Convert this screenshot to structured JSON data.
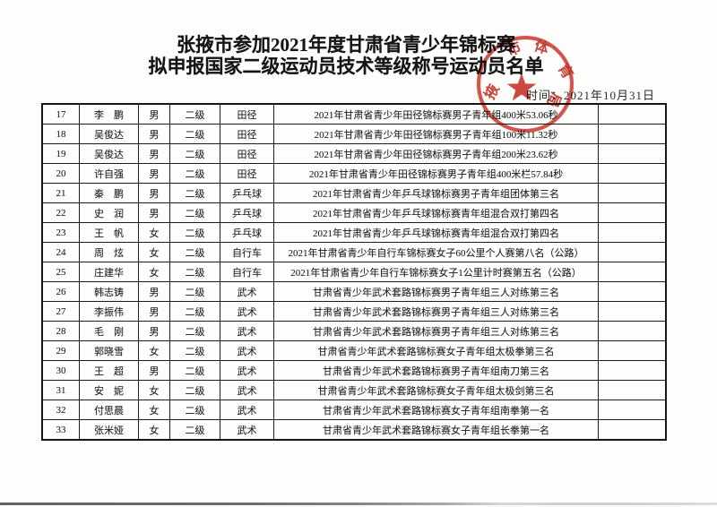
{
  "document": {
    "title_line1": "张掖市参加2021年度甘肃省青少年锦标赛",
    "title_line2": "拟申报国家二级运动员技术等级称号运动员名单",
    "date_label": "时间：2021年10月31日"
  },
  "stamp": {
    "label": "市体育局公章",
    "chars": [
      "掖",
      "市",
      "体",
      "育",
      "局"
    ],
    "color": "#c5271b"
  },
  "table": {
    "rows": [
      {
        "no": "17",
        "name": "李　鹏",
        "gender": "男",
        "level": "二级",
        "sport": "田径",
        "result": "2021年甘肃省青少年田径锦标赛男子青年组400米53.06秒",
        "note": ""
      },
      {
        "no": "18",
        "name": "吴俊达",
        "gender": "男",
        "level": "二级",
        "sport": "田径",
        "result": "2021年甘肃省青少年田径锦标赛男子青年组100米11.32秒",
        "note": ""
      },
      {
        "no": "19",
        "name": "吴俊达",
        "gender": "男",
        "level": "二级",
        "sport": "田径",
        "result": "2021年甘肃省青少年田径锦标赛男子青年组200米23.62秒",
        "note": ""
      },
      {
        "no": "20",
        "name": "许自强",
        "gender": "男",
        "level": "二级",
        "sport": "田径",
        "result": "2021年甘肃省青少年田径锦标赛男子青年组400米栏57.84秒",
        "note": ""
      },
      {
        "no": "21",
        "name": "秦　鹏",
        "gender": "男",
        "level": "二级",
        "sport": "乒乓球",
        "result": "2021年甘肃省青少年乒乓球锦标赛男子青年组团体第三名",
        "note": ""
      },
      {
        "no": "22",
        "name": "史　润",
        "gender": "男",
        "level": "二级",
        "sport": "乒乓球",
        "result": "2021年甘肃省青少年乒乓球锦标赛青年组混合双打第四名",
        "note": ""
      },
      {
        "no": "23",
        "name": "王　帆",
        "gender": "女",
        "level": "二级",
        "sport": "乒乓球",
        "result": "2021年甘肃省青少年乒乓球锦标赛青年组混合双打第四名",
        "note": ""
      },
      {
        "no": "24",
        "name": "周　炫",
        "gender": "女",
        "level": "二级",
        "sport": "自行车",
        "result": "2021年甘肃省青少年自行车锦标赛女子60公里个人赛第八名（公路）",
        "note": ""
      },
      {
        "no": "25",
        "name": "庄建华",
        "gender": "女",
        "level": "二级",
        "sport": "自行车",
        "result": "2021年甘肃省青少年自行车锦标赛女子1公里计时赛第五名（公路）",
        "note": ""
      },
      {
        "no": "26",
        "name": "韩志铸",
        "gender": "男",
        "level": "二级",
        "sport": "武术",
        "result": "甘肃省青少年武术套路锦标赛男子青年组三人对练第三名",
        "note": ""
      },
      {
        "no": "27",
        "name": "李振伟",
        "gender": "男",
        "level": "二级",
        "sport": "武术",
        "result": "甘肃省青少年武术套路锦标赛男子青年组三人对练第三名",
        "note": ""
      },
      {
        "no": "28",
        "name": "毛　刚",
        "gender": "男",
        "level": "二级",
        "sport": "武术",
        "result": "甘肃省青少年武术套路锦标赛男子青年组三人对练第三名",
        "note": ""
      },
      {
        "no": "29",
        "name": "郭晓雪",
        "gender": "女",
        "level": "二级",
        "sport": "武术",
        "result": "甘肃省青少年武术套路锦标赛女子青年组太极拳第三名",
        "note": ""
      },
      {
        "no": "30",
        "name": "王　超",
        "gender": "男",
        "level": "二级",
        "sport": "武术",
        "result": "甘肃省青少年武术套路锦标赛男子青年组南刀第三名",
        "note": ""
      },
      {
        "no": "31",
        "name": "安　妮",
        "gender": "女",
        "level": "二级",
        "sport": "武术",
        "result": "甘肃省青少年武术套路锦标赛女子青年组太极剑第三名",
        "note": ""
      },
      {
        "no": "32",
        "name": "付思晨",
        "gender": "女",
        "level": "二级",
        "sport": "武术",
        "result": "甘肃省青少年武术套路锦标赛女子青年组南拳第一名",
        "note": ""
      },
      {
        "no": "33",
        "name": "张米娅",
        "gender": "女",
        "level": "二级",
        "sport": "武术",
        "result": "甘肃省青少年武术套路锦标赛女子青年组长拳第一名",
        "note": ""
      }
    ]
  }
}
